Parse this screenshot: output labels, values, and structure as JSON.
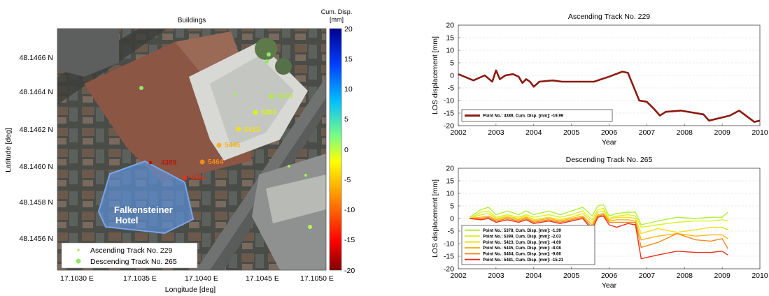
{
  "colors": {
    "aerial_dark": "#3a3d3a",
    "roof": "#8a5a4a",
    "hotel_overlay": "#5b8fd6",
    "ascending_series": "#8b1a10",
    "descending_series": [
      "#b3ee3a",
      "#d8f21e",
      "#f4df18",
      "#f6b416",
      "#f28a1c",
      "#e8301c"
    ],
    "colormap": [
      "#7f0000",
      "#ff0000",
      "#ff7f00",
      "#ffff00",
      "#7fff7f",
      "#00bfff",
      "#0000ff",
      "#000080"
    ]
  },
  "map_panel": {
    "title": "Buildings",
    "colorbar_title_line1": "Cum. Disp.",
    "colorbar_title_line2": "[mm]",
    "colorbar_ticks": [
      "20",
      "15",
      "10",
      "5",
      "0",
      "-5",
      "-10",
      "-15",
      "-20"
    ],
    "xlabel": "Longitude [deg]",
    "ylabel": "Latitude [deg]",
    "x_ticks": [
      "17.1030 E",
      "17.1035 E",
      "17.1040 E",
      "17.1045 E",
      "17.1050 E"
    ],
    "y_ticks": [
      "48.1466 N",
      "48.1464 N",
      "48.1462 N",
      "48.1460 N",
      "48.1458 N",
      "48.1456 N"
    ],
    "hotel_label_line1": "Falkensteiner",
    "hotel_label_line2": "Hotel",
    "legend_ascending": "Ascending Track No. 229",
    "legend_descending": "Descending Track No. 265",
    "point_labels": [
      {
        "label": "5378",
        "color": "#b3ee3a"
      },
      {
        "label": "5399",
        "color": "#d8f21e"
      },
      {
        "label": "5423",
        "color": "#f4df18"
      },
      {
        "label": "5445",
        "color": "#f6b416"
      },
      {
        "label": "5464",
        "color": "#f28a1c"
      },
      {
        "label": "5481",
        "color": "#e8301c"
      },
      {
        "label": "4389",
        "color": "#b01c12"
      }
    ]
  },
  "chart_data": [
    {
      "type": "line",
      "title": "Ascending Track No. 229",
      "xlabel": "Year",
      "ylabel": "LOS displacement [mm]",
      "xlim": [
        2002,
        2010
      ],
      "ylim": [
        -20,
        20
      ],
      "x_ticks": [
        "2002",
        "2003",
        "2004",
        "2005",
        "2006",
        "2007",
        "2008",
        "2009",
        "2010"
      ],
      "y_ticks": [
        "20",
        "15",
        "10",
        "5",
        "0",
        "-5",
        "-10",
        "-15",
        "-20"
      ],
      "grid": true,
      "legend_position": "bottom-left",
      "series": [
        {
          "name": "Point No.: 4389, Cum. Disp. [mm]: -19.99",
          "x": [
            2002.0,
            2002.4,
            2002.7,
            2002.9,
            2003.0,
            2003.1,
            2003.25,
            2003.45,
            2003.6,
            2003.7,
            2003.8,
            2003.9,
            2004.0,
            2004.15,
            2004.5,
            2004.75,
            2005.1,
            2005.6,
            2006.0,
            2006.35,
            2006.5,
            2006.8,
            2007.0,
            2007.2,
            2007.35,
            2007.5,
            2007.9,
            2008.5,
            2008.65,
            2009.2,
            2009.45,
            2009.85,
            2010.0
          ],
          "y": [
            0.5,
            -2,
            0,
            -2.5,
            2,
            -1.5,
            0,
            0.5,
            -0.5,
            -3,
            -1.5,
            -2.5,
            -4.5,
            -2.5,
            -2,
            -2.5,
            -2.5,
            -2.5,
            -0.5,
            1.5,
            1,
            -10,
            -10.5,
            -13.5,
            -16,
            -14.5,
            -14,
            -15.5,
            -18,
            -16,
            -14,
            -18.5,
            -18
          ]
        }
      ]
    },
    {
      "type": "line",
      "title": "Descending Track No. 265",
      "xlabel": "Year",
      "ylabel": "LOS displacement [mm]",
      "xlim": [
        2002,
        2010
      ],
      "ylim": [
        -20,
        20
      ],
      "x_ticks": [
        "2002",
        "2003",
        "2004",
        "2005",
        "2006",
        "2007",
        "2008",
        "2009",
        "2010"
      ],
      "y_ticks": [
        "20",
        "15",
        "10",
        "5",
        "0",
        "-5",
        "-10",
        "-15",
        "-20"
      ],
      "grid": true,
      "legend_position": "bottom-left",
      "series": [
        {
          "name": "Point No.: 5378, Cum. Disp. [mm]: -1.39",
          "x": [
            2002.3,
            2002.6,
            2002.8,
            2003.0,
            2003.3,
            2003.6,
            2003.8,
            2004.0,
            2004.4,
            2004.7,
            2005.0,
            2005.3,
            2005.55,
            2005.7,
            2005.85,
            2006.0,
            2006.2,
            2006.5,
            2006.7,
            2006.85,
            2007.3,
            2007.8,
            2008.3,
            2008.7,
            2009.0,
            2009.15
          ],
          "y": [
            0.5,
            3.5,
            4.5,
            1.5,
            3,
            1.5,
            3,
            1.5,
            3,
            1.5,
            3,
            4.5,
            1,
            5,
            5.5,
            1,
            2,
            2.5,
            2.5,
            -2.5,
            -1,
            0.5,
            0,
            0.5,
            0.5,
            2.5
          ]
        },
        {
          "name": "Point No.: 5399, Cum. Disp. [mm]: -2.03",
          "x": [
            2002.3,
            2002.6,
            2002.8,
            2003.0,
            2003.3,
            2003.6,
            2003.8,
            2004.0,
            2004.4,
            2004.7,
            2005.0,
            2005.3,
            2005.55,
            2005.7,
            2005.85,
            2006.0,
            2006.2,
            2006.5,
            2006.7,
            2006.85,
            2007.3,
            2007.8,
            2008.3,
            2008.7,
            2009.0,
            2009.15
          ],
          "y": [
            0,
            2.5,
            3,
            0.5,
            1.5,
            0.5,
            1.5,
            0.5,
            1.5,
            0.5,
            1.5,
            3,
            -0.5,
            3.5,
            4,
            0,
            1,
            1.5,
            1,
            -3.5,
            -2.5,
            -1.5,
            -1,
            -1,
            -0.5,
            -1
          ]
        },
        {
          "name": "Point No.: 5423, Cum. Disp. [mm]: -4.69",
          "x": [
            2002.3,
            2002.6,
            2002.8,
            2003.0,
            2003.3,
            2003.6,
            2003.8,
            2004.0,
            2004.4,
            2004.7,
            2005.0,
            2005.3,
            2005.55,
            2005.7,
            2005.85,
            2006.0,
            2006.2,
            2006.5,
            2006.7,
            2006.85,
            2007.3,
            2007.8,
            2008.3,
            2008.7,
            2009.0,
            2009.15
          ],
          "y": [
            0,
            1.5,
            2,
            0,
            1,
            0,
            1,
            -0.5,
            0.5,
            -0.5,
            0.5,
            2,
            -1.5,
            2.5,
            3,
            -0.5,
            0.5,
            0.5,
            0,
            -6,
            -4,
            -5.5,
            -4.5,
            -3.5,
            -3.5,
            -4.5
          ]
        },
        {
          "name": "Point No.: 5445, Cum. Disp. [mm]: -8.08",
          "x": [
            2002.3,
            2002.6,
            2002.8,
            2003.0,
            2003.3,
            2003.6,
            2003.8,
            2004.0,
            2004.4,
            2004.7,
            2005.0,
            2005.3,
            2005.55,
            2005.7,
            2005.85,
            2006.0,
            2006.2,
            2006.5,
            2006.7,
            2006.85,
            2007.3,
            2007.8,
            2008.3,
            2008.7,
            2009.0,
            2009.15
          ],
          "y": [
            0,
            0.5,
            1,
            -0.5,
            0.5,
            -0.5,
            0.5,
            -1,
            0,
            -1,
            0,
            1,
            -2.5,
            1.5,
            2,
            -1,
            -0.5,
            -0.5,
            -1,
            -8.5,
            -7,
            -6,
            -7,
            -6.5,
            -6.5,
            -8
          ]
        },
        {
          "name": "Point No.: 5464, Cum. Disp. [mm]: -9.66",
          "x": [
            2002.3,
            2002.6,
            2002.8,
            2003.0,
            2003.3,
            2003.6,
            2003.8,
            2004.0,
            2004.4,
            2004.7,
            2005.0,
            2005.3,
            2005.55,
            2005.7,
            2005.85,
            2006.0,
            2006.2,
            2006.5,
            2006.7,
            2006.85,
            2007.3,
            2007.8,
            2008.3,
            2008.7,
            2009.0,
            2009.15
          ],
          "y": [
            0,
            0,
            0.5,
            -1,
            0,
            -1,
            0,
            -1.5,
            -0.5,
            -1.5,
            -0.5,
            0.5,
            -3.5,
            1,
            1.5,
            -1.5,
            -1.5,
            -1.5,
            -1.5,
            -11.5,
            -9.5,
            -6,
            -8.5,
            -9,
            -8,
            -12
          ]
        },
        {
          "name": "Point No.: 5481, Cum. Disp. [mm]: -15.21",
          "x": [
            2002.3,
            2002.6,
            2002.8,
            2003.0,
            2003.3,
            2003.6,
            2003.8,
            2004.0,
            2004.4,
            2004.7,
            2005.0,
            2005.3,
            2005.55,
            2005.7,
            2005.85,
            2006.0,
            2006.2,
            2006.5,
            2006.7,
            2006.85,
            2007.3,
            2007.8,
            2008.3,
            2008.7,
            2009.0,
            2009.15
          ],
          "y": [
            0,
            -0.5,
            0,
            -1.5,
            -0.5,
            -1.5,
            -0.5,
            -2,
            -1,
            -2,
            -1,
            0,
            -4.5,
            0.5,
            1,
            -2.5,
            -3.5,
            -2,
            -2.5,
            -16,
            -14.5,
            -13,
            -13.5,
            -13.5,
            -13,
            -14.5
          ]
        }
      ]
    }
  ]
}
